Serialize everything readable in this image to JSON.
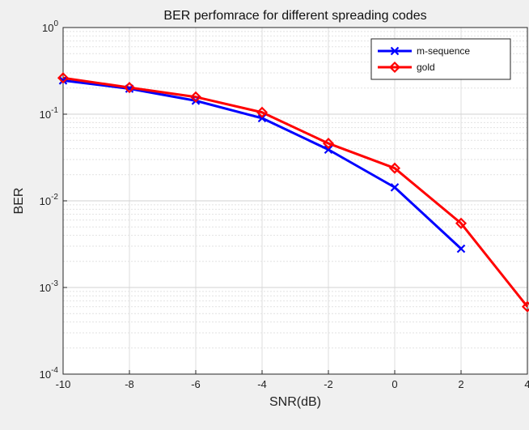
{
  "chart_data": {
    "type": "line",
    "title": "BER perfomrace for different spreading codes",
    "xlabel": "SNR(dB)",
    "ylabel": "BER",
    "x_ticks": [
      "-10",
      "-8",
      "-6",
      "-4",
      "-2",
      "0",
      "2",
      "4"
    ],
    "y_ticks": [
      {
        "base": "10",
        "exp": "0"
      },
      {
        "base": "10",
        "exp": "-1"
      },
      {
        "base": "10",
        "exp": "-2"
      },
      {
        "base": "10",
        "exp": "-3"
      },
      {
        "base": "10",
        "exp": "-4"
      }
    ],
    "xlim": [
      -10,
      4
    ],
    "ylim": [
      0.0001,
      1
    ],
    "yscale": "log",
    "grid": true,
    "legend_position": "top-right",
    "series": [
      {
        "name": "m-sequence",
        "color": "#0000ff",
        "marker": "x",
        "x": [
          -10,
          -8,
          -6,
          -4,
          -2,
          0,
          2
        ],
        "y": [
          0.245,
          0.197,
          0.143,
          0.09,
          0.039,
          0.0143,
          0.0028
        ]
      },
      {
        "name": "gold",
        "color": "#ff0000",
        "marker": "diamond",
        "x": [
          -10,
          -8,
          -6,
          -4,
          -2,
          0,
          2,
          4
        ],
        "y": [
          0.262,
          0.203,
          0.158,
          0.105,
          0.046,
          0.0238,
          0.0055,
          0.0006
        ]
      }
    ]
  }
}
